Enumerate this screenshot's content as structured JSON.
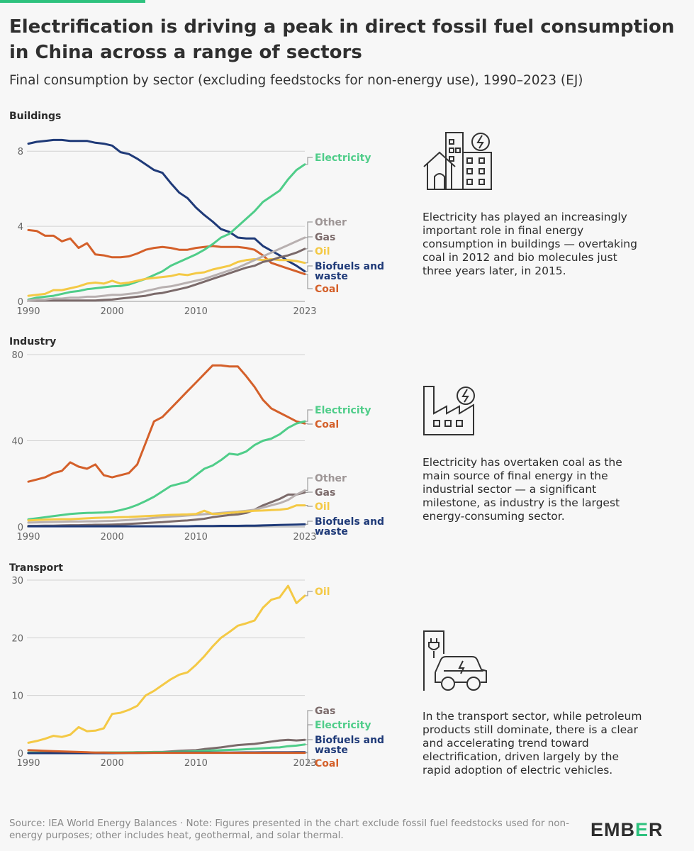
{
  "title": "Electrification is driving a peak in direct fossil fuel consumption in China across a range of sectors",
  "subtitle": "Final consumption by sector (excluding feedstocks for non-energy use), 1990–2023 (EJ)",
  "source": "Source: IEA World Energy Balances · Note: Figures presented in the chart exclude fossil fuel feedstocks used for non-energy purposes; other includes heat, geothermal, and solar thermal.",
  "logo": {
    "prefix": "EMB",
    "accent": "E",
    "suffix": "R"
  },
  "colors": {
    "Electricity": "#4fcd89",
    "Coal": "#d4602a",
    "Oil": "#f4c945",
    "Gas": "#7b6a6a",
    "Other": "#b8b0b0",
    "Biofuels and waste": "#1f3a78",
    "accent": "#2ec27e"
  },
  "panels": [
    {
      "id": "buildings",
      "icon": "building-electricity-icon",
      "description": "Electricity has played an increasingly important role in final energy consumption in buildings — overtaking coal in 2012 and bio molecules just three years later, in 2015."
    },
    {
      "id": "industry",
      "icon": "factory-electricity-icon",
      "description": "Electricity has overtaken coal as the main source of final energy in the industrial sector — a significant milestone, as industry is the largest energy-consuming sector."
    },
    {
      "id": "transport",
      "icon": "electric-car-charging-icon",
      "description": "In the transport sector, while petroleum products still dominate, there is a clear and accelerating trend toward electrification, driven largely by the rapid adoption of electric vehicles."
    }
  ],
  "chart_data": [
    {
      "type": "line",
      "title": "Buildings",
      "xlabel": "",
      "ylabel": "EJ",
      "xlim": [
        1990,
        2023
      ],
      "ylim": [
        0,
        8.5
      ],
      "yticks": [
        0,
        4,
        8
      ],
      "xticks": [
        1990,
        2000,
        2010,
        2023
      ],
      "x": [
        1990,
        1991,
        1992,
        1993,
        1994,
        1995,
        1996,
        1997,
        1998,
        1999,
        2000,
        2001,
        2002,
        2003,
        2004,
        2005,
        2006,
        2007,
        2008,
        2009,
        2010,
        2011,
        2012,
        2013,
        2014,
        2015,
        2016,
        2017,
        2018,
        2019,
        2020,
        2021,
        2022,
        2023
      ],
      "series": [
        {
          "name": "Biofuels and waste",
          "label": "Biofuels and waste",
          "values": [
            8.4,
            8.5,
            8.55,
            8.6,
            8.6,
            8.55,
            8.55,
            8.55,
            8.45,
            8.4,
            8.3,
            7.95,
            7.85,
            7.6,
            7.3,
            7.0,
            6.85,
            6.3,
            5.8,
            5.5,
            5.0,
            4.6,
            4.25,
            3.85,
            3.7,
            3.4,
            3.35,
            3.35,
            2.95,
            2.7,
            2.45,
            2.15,
            1.9,
            1.6
          ]
        },
        {
          "name": "Coal",
          "label": "Coal",
          "values": [
            3.8,
            3.75,
            3.5,
            3.5,
            3.2,
            3.35,
            2.85,
            3.1,
            2.5,
            2.45,
            2.35,
            2.35,
            2.4,
            2.55,
            2.75,
            2.85,
            2.9,
            2.85,
            2.75,
            2.75,
            2.85,
            2.9,
            2.95,
            2.9,
            2.9,
            2.9,
            2.85,
            2.75,
            2.45,
            2.05,
            1.9,
            1.75,
            1.6,
            1.45
          ]
        },
        {
          "name": "Electricity",
          "label": "Electricity",
          "values": [
            0.1,
            0.2,
            0.25,
            0.3,
            0.4,
            0.5,
            0.55,
            0.65,
            0.7,
            0.75,
            0.8,
            0.82,
            0.9,
            1.05,
            1.2,
            1.4,
            1.6,
            1.9,
            2.1,
            2.3,
            2.5,
            2.75,
            3.05,
            3.4,
            3.6,
            4.0,
            4.4,
            4.8,
            5.3,
            5.6,
            5.9,
            6.5,
            7.0,
            7.3
          ]
        },
        {
          "name": "Oil",
          "label": "Oil",
          "values": [
            0.3,
            0.35,
            0.4,
            0.6,
            0.6,
            0.7,
            0.8,
            0.95,
            1.0,
            0.95,
            1.1,
            0.95,
            1.0,
            1.1,
            1.2,
            1.25,
            1.3,
            1.35,
            1.45,
            1.4,
            1.5,
            1.55,
            1.7,
            1.8,
            1.9,
            2.1,
            2.2,
            2.25,
            2.2,
            2.25,
            2.2,
            2.2,
            2.15,
            2.05
          ]
        },
        {
          "name": "Gas",
          "label": "Gas",
          "values": [
            0.05,
            0.05,
            0.05,
            0.05,
            0.05,
            0.05,
            0.05,
            0.05,
            0.05,
            0.08,
            0.1,
            0.15,
            0.2,
            0.25,
            0.3,
            0.4,
            0.45,
            0.55,
            0.65,
            0.75,
            0.9,
            1.05,
            1.2,
            1.35,
            1.5,
            1.65,
            1.8,
            1.9,
            2.1,
            2.2,
            2.35,
            2.45,
            2.6,
            2.8
          ]
        },
        {
          "name": "Other",
          "label": "Other",
          "values": [
            0.05,
            0.1,
            0.1,
            0.15,
            0.15,
            0.2,
            0.2,
            0.25,
            0.25,
            0.3,
            0.35,
            0.35,
            0.4,
            0.45,
            0.55,
            0.65,
            0.75,
            0.8,
            0.9,
            1.0,
            1.1,
            1.2,
            1.35,
            1.5,
            1.65,
            1.8,
            2.0,
            2.2,
            2.4,
            2.6,
            2.8,
            3.0,
            3.2,
            3.4
          ]
        }
      ],
      "end_labels": [
        "Electricity",
        "Other",
        "Gas",
        "Oil",
        "Biofuels and waste",
        "Coal"
      ]
    },
    {
      "type": "line",
      "title": "Industry",
      "xlabel": "",
      "ylabel": "EJ",
      "xlim": [
        1990,
        2023
      ],
      "ylim": [
        0,
        80
      ],
      "yticks": [
        0,
        40,
        80
      ],
      "xticks": [
        1990,
        2000,
        2010,
        2023
      ],
      "x": [
        1990,
        1991,
        1992,
        1993,
        1994,
        1995,
        1996,
        1997,
        1998,
        1999,
        2000,
        2001,
        2002,
        2003,
        2004,
        2005,
        2006,
        2007,
        2008,
        2009,
        2010,
        2011,
        2012,
        2013,
        2014,
        2015,
        2016,
        2017,
        2018,
        2019,
        2020,
        2021,
        2022,
        2023
      ],
      "series": [
        {
          "name": "Coal",
          "label": "Coal",
          "values": [
            21,
            22,
            23,
            25,
            26,
            30,
            28,
            27,
            29,
            24,
            23,
            24,
            25,
            29,
            39,
            49,
            51,
            55,
            59,
            63,
            67,
            71,
            75,
            75,
            74.5,
            74.5,
            70,
            65,
            59,
            55,
            53,
            51,
            49,
            48
          ]
        },
        {
          "name": "Electricity",
          "label": "Electricity",
          "values": [
            3.5,
            4,
            4.5,
            5,
            5.5,
            6,
            6.3,
            6.5,
            6.6,
            6.7,
            7,
            7.8,
            8.8,
            10.2,
            12,
            14,
            16.5,
            19,
            20,
            21,
            24,
            27,
            28.5,
            31,
            34,
            33.5,
            35,
            38,
            40,
            41,
            43,
            46,
            48,
            49
          ]
        },
        {
          "name": "Gas",
          "label": "Gas",
          "values": [
            0.5,
            0.5,
            0.6,
            0.6,
            0.7,
            0.8,
            0.8,
            0.9,
            1.0,
            1.0,
            1.1,
            1.2,
            1.4,
            1.6,
            1.8,
            2.0,
            2.2,
            2.5,
            2.8,
            3.0,
            3.4,
            3.8,
            4.5,
            5.0,
            5.5,
            5.8,
            6.5,
            8,
            10,
            11.5,
            13,
            15,
            15,
            16
          ]
        },
        {
          "name": "Other",
          "label": "Other",
          "values": [
            2,
            2.1,
            2.2,
            2.3,
            2.4,
            2.5,
            2.5,
            2.6,
            2.6,
            2.7,
            2.8,
            3,
            3.2,
            3.5,
            3.8,
            4.2,
            4.5,
            4.8,
            5,
            5.3,
            5.6,
            5.9,
            6.2,
            6.5,
            6.8,
            7.1,
            7.5,
            8,
            9,
            10,
            11,
            12.5,
            15,
            17
          ]
        },
        {
          "name": "Oil",
          "label": "Oil",
          "values": [
            3,
            3.2,
            3.4,
            3.5,
            3.6,
            3.6,
            3.8,
            4,
            4.2,
            4.3,
            4.4,
            4.5,
            4.6,
            4.8,
            5,
            5.2,
            5.4,
            5.6,
            5.7,
            5.8,
            6,
            7.5,
            6,
            6.2,
            6.5,
            6.8,
            7.2,
            7.5,
            7.6,
            7.8,
            8,
            8.5,
            10,
            10
          ]
        },
        {
          "name": "Biofuels and waste",
          "label": "Biofuels and waste",
          "values": [
            0.3,
            0.3,
            0.3,
            0.3,
            0.3,
            0.3,
            0.3,
            0.3,
            0.3,
            0.3,
            0.3,
            0.3,
            0.3,
            0.3,
            0.3,
            0.3,
            0.3,
            0.3,
            0.3,
            0.3,
            0.4,
            0.4,
            0.4,
            0.5,
            0.5,
            0.5,
            0.6,
            0.6,
            0.7,
            0.8,
            0.9,
            1.0,
            1.1,
            1.2
          ]
        }
      ],
      "end_labels": [
        "Electricity",
        "Coal",
        "Other",
        "Gas",
        "Oil",
        "Biofuels and waste"
      ]
    },
    {
      "type": "line",
      "title": "Transport",
      "xlabel": "",
      "ylabel": "EJ",
      "xlim": [
        1990,
        2023
      ],
      "ylim": [
        0,
        30
      ],
      "yticks": [
        0,
        10,
        20,
        30
      ],
      "xticks": [
        1990,
        2000,
        2010,
        2023
      ],
      "x": [
        1990,
        1991,
        1992,
        1993,
        1994,
        1995,
        1996,
        1997,
        1998,
        1999,
        2000,
        2001,
        2002,
        2003,
        2004,
        2005,
        2006,
        2007,
        2008,
        2009,
        2010,
        2011,
        2012,
        2013,
        2014,
        2015,
        2016,
        2017,
        2018,
        2019,
        2020,
        2021,
        2022,
        2023
      ],
      "series": [
        {
          "name": "Oil",
          "label": "Oil",
          "values": [
            1.8,
            2.1,
            2.5,
            3.0,
            2.8,
            3.2,
            4.5,
            3.8,
            3.9,
            4.3,
            6.8,
            7,
            7.5,
            8.2,
            10,
            10.8,
            11.8,
            12.8,
            13.6,
            14,
            15.3,
            16.8,
            18.5,
            20,
            21,
            22.1,
            22.5,
            23,
            25.2,
            26.6,
            27,
            29,
            26,
            27.3
          ]
        },
        {
          "name": "Gas",
          "label": "Gas",
          "values": [
            0.05,
            0.05,
            0.05,
            0.05,
            0.05,
            0.05,
            0.05,
            0.05,
            0.05,
            0.08,
            0.1,
            0.1,
            0.1,
            0.15,
            0.15,
            0.2,
            0.2,
            0.3,
            0.4,
            0.45,
            0.5,
            0.7,
            0.85,
            1.0,
            1.2,
            1.4,
            1.5,
            1.6,
            1.8,
            2.0,
            2.2,
            2.3,
            2.2,
            2.3
          ]
        },
        {
          "name": "Electricity",
          "label": "Electricity",
          "values": [
            0.1,
            0.1,
            0.1,
            0.1,
            0.1,
            0.1,
            0.1,
            0.1,
            0.1,
            0.1,
            0.12,
            0.12,
            0.14,
            0.15,
            0.15,
            0.17,
            0.18,
            0.2,
            0.25,
            0.28,
            0.32,
            0.38,
            0.45,
            0.5,
            0.55,
            0.6,
            0.68,
            0.75,
            0.85,
            0.95,
            1.0,
            1.2,
            1.3,
            1.5
          ]
        },
        {
          "name": "Biofuels and waste",
          "label": "Biofuels and waste",
          "values": [
            0,
            0,
            0,
            0,
            0,
            0,
            0,
            0,
            0,
            0,
            0,
            0.01,
            0.02,
            0.03,
            0.05,
            0.06,
            0.07,
            0.08,
            0.08,
            0.08,
            0.08,
            0.09,
            0.1,
            0.1,
            0.1,
            0.11,
            0.12,
            0.12,
            0.13,
            0.13,
            0.14,
            0.14,
            0.15,
            0.15
          ]
        },
        {
          "name": "Coal",
          "label": "Coal",
          "values": [
            0.5,
            0.45,
            0.4,
            0.35,
            0.3,
            0.25,
            0.2,
            0.15,
            0.1,
            0.08,
            0.06,
            0.05,
            0.05,
            0.05,
            0.05,
            0.05,
            0.05,
            0.05,
            0.05,
            0.05,
            0.05,
            0.05,
            0.05,
            0.05,
            0.05,
            0.05,
            0.05,
            0.05,
            0.05,
            0.05,
            0.05,
            0.05,
            0.05,
            0.05
          ]
        }
      ],
      "end_labels": [
        "Oil",
        "Gas",
        "Electricity",
        "Biofuels and waste",
        "Coal"
      ]
    }
  ]
}
